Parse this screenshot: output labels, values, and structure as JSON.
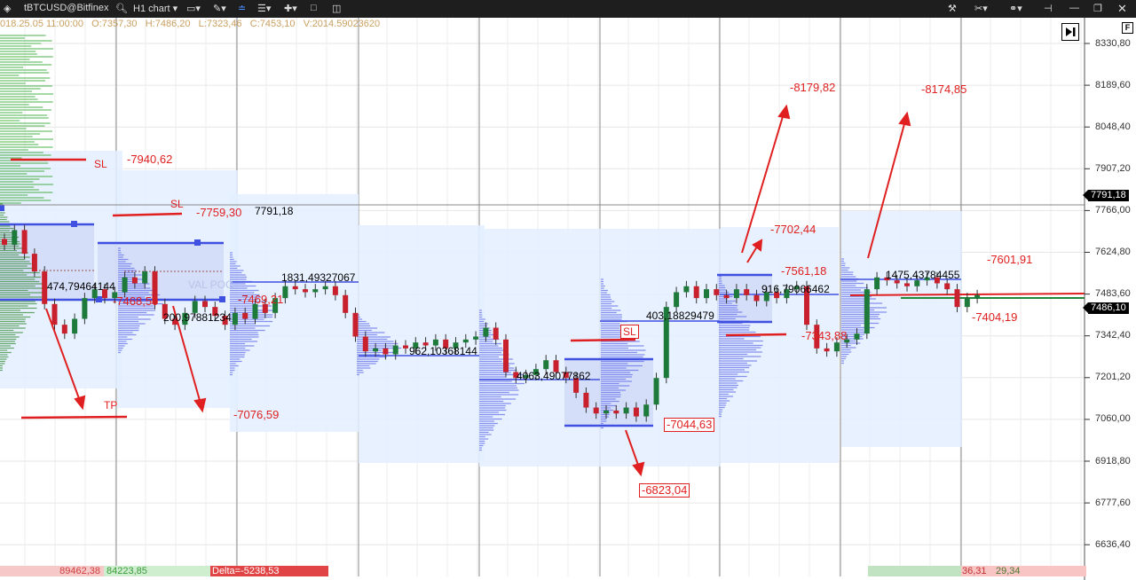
{
  "titlebar": {
    "symbol": "tBTCUSD@Bitfinex",
    "chart_type": "H1 chart",
    "icons": [
      "app-logo-icon",
      "search-icon",
      "monitor-icon",
      "pencil-icon",
      "indicator-icon",
      "align-icon",
      "crosshair-icon",
      "window-icon",
      "layout-icon",
      "tools-icon",
      "scissors-icon",
      "link-icon",
      "pin-icon",
      "minimize-icon",
      "maximize-icon",
      "close-icon"
    ]
  },
  "ohlc_bar": {
    "date": "018.25.05 11:00:00",
    "open": "O:7357,30",
    "high": "H:7486,20",
    "low": "L:7323,46",
    "close": "C:7453,10",
    "volume": "V:2014.59023620"
  },
  "price_axis": {
    "ticks": [
      "8330,80",
      "8189,60",
      "8048,40",
      "7907,20",
      "7766,00",
      "7624,80",
      "7483,60",
      "7342,40",
      "7201,20",
      "7060,00",
      "6918,80",
      "6777,60",
      "6636,40"
    ],
    "tick_values": [
      8330.8,
      8189.6,
      8048.4,
      7907.2,
      7766.0,
      7624.8,
      7483.6,
      7342.4,
      7201.2,
      7060.0,
      6918.8,
      6777.6,
      6636.4
    ],
    "last_price_tag": "7486,10",
    "line_price_tag": "7791,18",
    "f_button": "F"
  },
  "chart_data": {
    "type": "candlestick",
    "timeframe": "H1",
    "ylim": [
      6600,
      8390
    ],
    "closes": [
      7650,
      7700,
      7620,
      7560,
      7450,
      7380,
      7350,
      7400,
      7470,
      7500,
      7470,
      7490,
      7540,
      7520,
      7560,
      7450,
      7400,
      7380,
      7420,
      7460,
      7440,
      7410,
      7380,
      7420,
      7400,
      7450,
      7420,
      7470,
      7510,
      7500,
      7490,
      7500,
      7510,
      7480,
      7420,
      7340,
      7290,
      7300,
      7280,
      7310,
      7300,
      7320,
      7310,
      7330,
      7300,
      7320,
      7330,
      7340,
      7370,
      7330,
      7220,
      7200,
      7210,
      7230,
      7260,
      7220,
      7200,
      7150,
      7100,
      7080,
      7090,
      7080,
      7100,
      7070,
      7110,
      7200,
      7440,
      7490,
      7510,
      7470,
      7500,
      7480,
      7470,
      7500,
      7480,
      7460,
      7490,
      7470,
      7500,
      7510,
      7380,
      7300,
      7290,
      7320,
      7330,
      7350,
      7500,
      7540,
      7530,
      7520,
      7510,
      7530,
      7540,
      7520,
      7500,
      7440,
      7470,
      7480
    ]
  },
  "annotations": [
    {
      "text": "SL",
      "style": "red"
    },
    {
      "text": "-7940,62",
      "style": "red"
    },
    {
      "text": "SL",
      "style": "red"
    },
    {
      "text": "-7759,30",
      "style": "red"
    },
    {
      "text": "7791,18",
      "style": "black"
    },
    {
      "text": "TP",
      "style": "red"
    },
    {
      "text": "474,79464144",
      "style": "black"
    },
    {
      "text": "-7468,50",
      "style": "red"
    },
    {
      "text": "200,97881234",
      "style": "black"
    },
    {
      "text": "VAL  POC",
      "style": "faded"
    },
    {
      "text": "-7469,21",
      "style": "red"
    },
    {
      "text": "-7076,59",
      "style": "red"
    },
    {
      "text": "1831,49327067",
      "style": "black"
    },
    {
      "text": "962,10368144",
      "style": "black"
    },
    {
      "text": "4063,49077862",
      "style": "black"
    },
    {
      "text": "SL",
      "style": "boxed"
    },
    {
      "text": "-7044,63",
      "style": "boxed"
    },
    {
      "text": "-6823,04",
      "style": "boxed"
    },
    {
      "text": "403,18829479",
      "style": "black"
    },
    {
      "text": "-8179,82",
      "style": "red"
    },
    {
      "text": "-7702,44",
      "style": "red"
    },
    {
      "text": "-7561,18",
      "style": "red"
    },
    {
      "text": "916,79066462",
      "style": "black"
    },
    {
      "text": "-7343,88",
      "style": "red"
    },
    {
      "text": "-8174,85",
      "style": "red"
    },
    {
      "text": "1475,43784455",
      "style": "black"
    },
    {
      "text": "-7601,91",
      "style": "red"
    },
    {
      "text": "-7404,19",
      "style": "red"
    }
  ],
  "bottom_bar": {
    "left_sell": "89462,38",
    "left_buy": "84223,85",
    "delta": "Delta=-5238,53",
    "right_a": "36,31",
    "right_b": "29,34"
  },
  "colors": {
    "bull": "#1e7a3a",
    "bear": "#c8202c",
    "profile": "#5a64e6",
    "value_area": "#e3efff",
    "annotation": "#e02020"
  }
}
